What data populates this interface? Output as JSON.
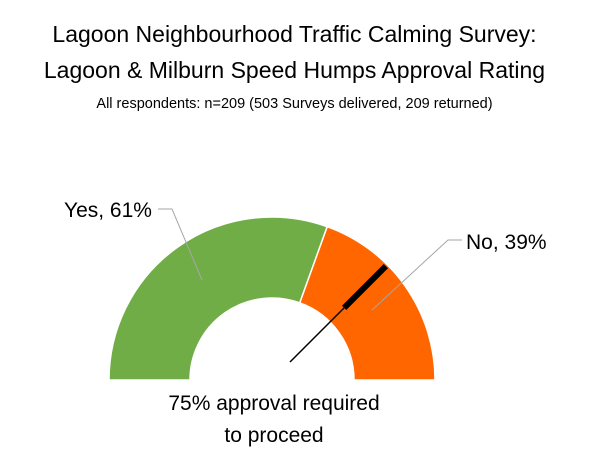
{
  "chart_data": {
    "type": "gauge",
    "title": [
      "Lagoon Neighbourhood Traffic Calming Survey:",
      "Lagoon & Milburn Speed Humps Approval Rating"
    ],
    "subtitle": "All respondents: n=209 (503 Surveys delivered, 209 returned)",
    "categories": [
      "Yes",
      "No"
    ],
    "values": [
      61,
      39
    ],
    "units": "%",
    "data_labels": [
      "Yes, 61%",
      "No, 39%"
    ],
    "colors": {
      "Yes": "#70ad47",
      "No": "#ff6600"
    },
    "threshold": 75,
    "threshold_note": [
      "75% approval required",
      "to proceed"
    ],
    "needle_color": "#000000"
  }
}
